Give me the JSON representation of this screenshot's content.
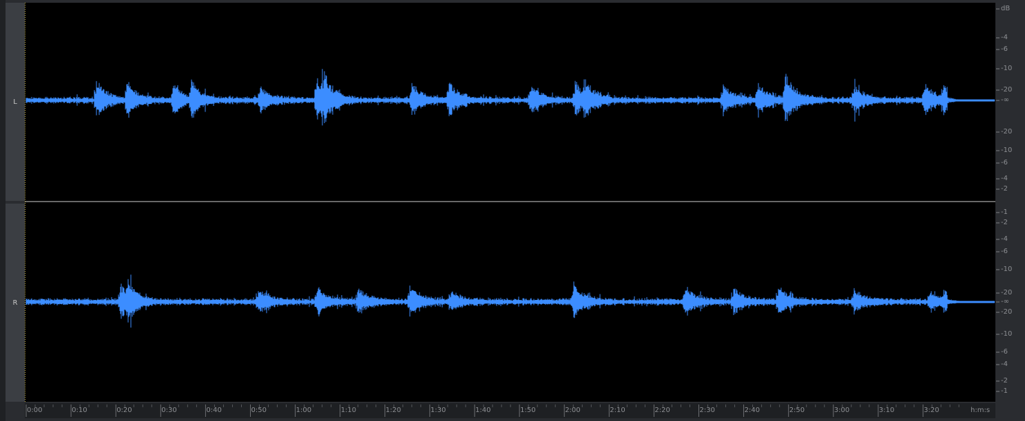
{
  "editor": {
    "waveform_color": "#3c8dff",
    "background_color": "#000000",
    "channels": [
      {
        "label": "L",
        "db_scale": [
          "dB",
          "-4",
          "-6",
          "-10",
          "-20",
          "-∞",
          "-20",
          "-10",
          "-6",
          "-4",
          "-2",
          "-1"
        ]
      },
      {
        "label": "R",
        "db_scale": [
          "-1",
          "-2",
          "-4",
          "-6",
          "-10",
          "-20",
          "-∞",
          "-20",
          "-10",
          "-6",
          "-4",
          "-2",
          "-1"
        ]
      }
    ],
    "time_ruler": {
      "ticks": [
        "0:00",
        "0:10",
        "0:20",
        "0:30",
        "0:40",
        "0:50",
        "1:00",
        "1:10",
        "1:20",
        "1:30",
        "1:40",
        "1:50",
        "2:00",
        "2:10",
        "2:20",
        "2:30",
        "2:40",
        "2:50",
        "3:00",
        "3:10",
        "3:20"
      ],
      "unit_label": "h:m:s"
    }
  }
}
